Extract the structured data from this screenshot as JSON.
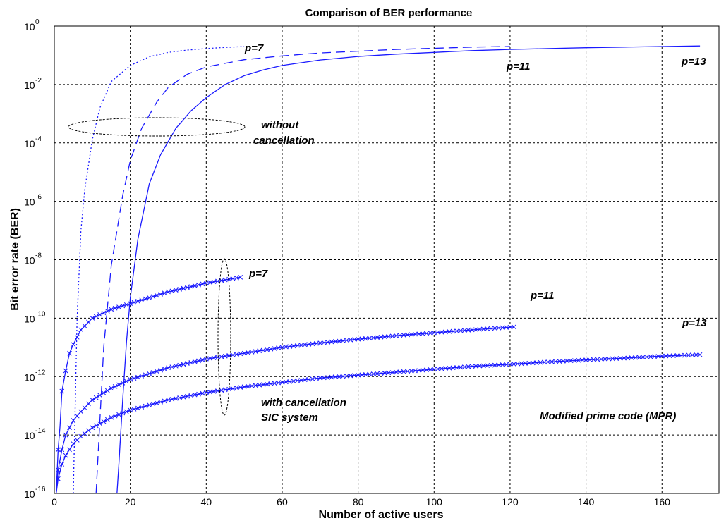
{
  "chart_data": {
    "type": "line",
    "title": "Comparison of BER performance",
    "xlabel": "Number of active users",
    "ylabel": "Bit error rate (BER)",
    "xlim": [
      0,
      175
    ],
    "ylim_exponent": [
      -16,
      0
    ],
    "y_scale": "log",
    "grid": true,
    "x_ticks": [
      "0",
      "20",
      "40",
      "60",
      "80",
      "100",
      "120",
      "140",
      "160"
    ],
    "x_tick_values": [
      0,
      20,
      40,
      60,
      80,
      100,
      120,
      140,
      160
    ],
    "y_tick_base": "10",
    "y_tick_exponents": [
      "0",
      "-2",
      "-4",
      "-6",
      "-8",
      "-10",
      "-12",
      "-14",
      "-16"
    ],
    "series": [
      {
        "style": "dotted",
        "markers": false,
        "x": [
          5,
          5.5,
          6,
          7,
          8,
          10,
          12,
          15,
          20,
          25,
          30,
          35,
          40,
          45,
          50
        ],
        "logy": [
          -16,
          -13,
          -10,
          -7,
          -5.6,
          -3.9,
          -2.8,
          -1.9,
          -1.35,
          -1.05,
          -0.9,
          -0.82,
          -0.77,
          -0.73,
          -0.7
        ]
      },
      {
        "style": "dashed",
        "markers": false,
        "x": [
          11,
          12,
          13,
          15,
          18,
          20,
          23,
          27,
          30,
          35,
          40,
          50,
          60,
          70,
          80,
          90,
          100,
          110,
          120
        ],
        "logy": [
          -16,
          -13.5,
          -11,
          -8.2,
          -5.8,
          -4.6,
          -3.5,
          -2.6,
          -2.1,
          -1.65,
          -1.4,
          -1.15,
          -1.02,
          -0.92,
          -0.86,
          -0.8,
          -0.76,
          -0.72,
          -0.7
        ]
      },
      {
        "style": "solid",
        "markers": false,
        "x": [
          16.5,
          17,
          18,
          19,
          20,
          22,
          25,
          28,
          32,
          36,
          40,
          45,
          50,
          55,
          60,
          70,
          80,
          90,
          100,
          110,
          120,
          130,
          140,
          150,
          160,
          170
        ],
        "logy": [
          -16,
          -15,
          -12.8,
          -10.8,
          -9.3,
          -7.3,
          -5.4,
          -4.4,
          -3.5,
          -2.9,
          -2.45,
          -2.0,
          -1.7,
          -1.5,
          -1.35,
          -1.16,
          -1.04,
          -0.96,
          -0.9,
          -0.84,
          -0.8,
          -0.77,
          -0.74,
          -0.72,
          -0.7,
          -0.68
        ]
      },
      {
        "style": "solid",
        "markers": true,
        "x": [
          0.5,
          1,
          1.5,
          2,
          3,
          4,
          5,
          7,
          10,
          15,
          20,
          30,
          40,
          49
        ],
        "logy": [
          -16,
          -14.5,
          -13.7,
          -12.5,
          -11.8,
          -11.2,
          -10.9,
          -10.4,
          -10.0,
          -9.7,
          -9.5,
          -9.1,
          -8.8,
          -8.6
        ]
      },
      {
        "style": "solid",
        "markers": true,
        "x": [
          0.5,
          1,
          2,
          3,
          5,
          7,
          10,
          15,
          20,
          30,
          40,
          50,
          60,
          70,
          80,
          90,
          100,
          110,
          121
        ],
        "logy": [
          -16,
          -15.2,
          -14.5,
          -14.0,
          -13.5,
          -13.2,
          -12.8,
          -12.4,
          -12.1,
          -11.7,
          -11.4,
          -11.2,
          -11.0,
          -10.85,
          -10.72,
          -10.6,
          -10.5,
          -10.4,
          -10.3
        ]
      },
      {
        "style": "solid",
        "markers": true,
        "x": [
          0.5,
          1,
          2,
          3,
          5,
          7,
          10,
          15,
          20,
          30,
          40,
          50,
          60,
          70,
          80,
          90,
          100,
          110,
          120,
          130,
          140,
          150,
          160,
          170
        ],
        "logy": [
          -16,
          -15.5,
          -15.0,
          -14.7,
          -14.3,
          -14.05,
          -13.75,
          -13.4,
          -13.15,
          -12.8,
          -12.55,
          -12.35,
          -12.2,
          -12.05,
          -11.95,
          -11.85,
          -11.75,
          -11.65,
          -11.58,
          -11.5,
          -11.43,
          -11.37,
          -11.3,
          -11.25
        ]
      }
    ],
    "annotations": {
      "p7_top": "p=7",
      "p11_top": "p=11",
      "p13_top": "p=13",
      "without": "without",
      "cancellation": "cancellation",
      "p7_bottom": "p=7",
      "p11_bottom": "p=11",
      "p13_bottom": "p=13",
      "with_cancellation": "with cancellation",
      "sic": "SIC system",
      "mpr": "Modified prime code (MPR)"
    }
  }
}
